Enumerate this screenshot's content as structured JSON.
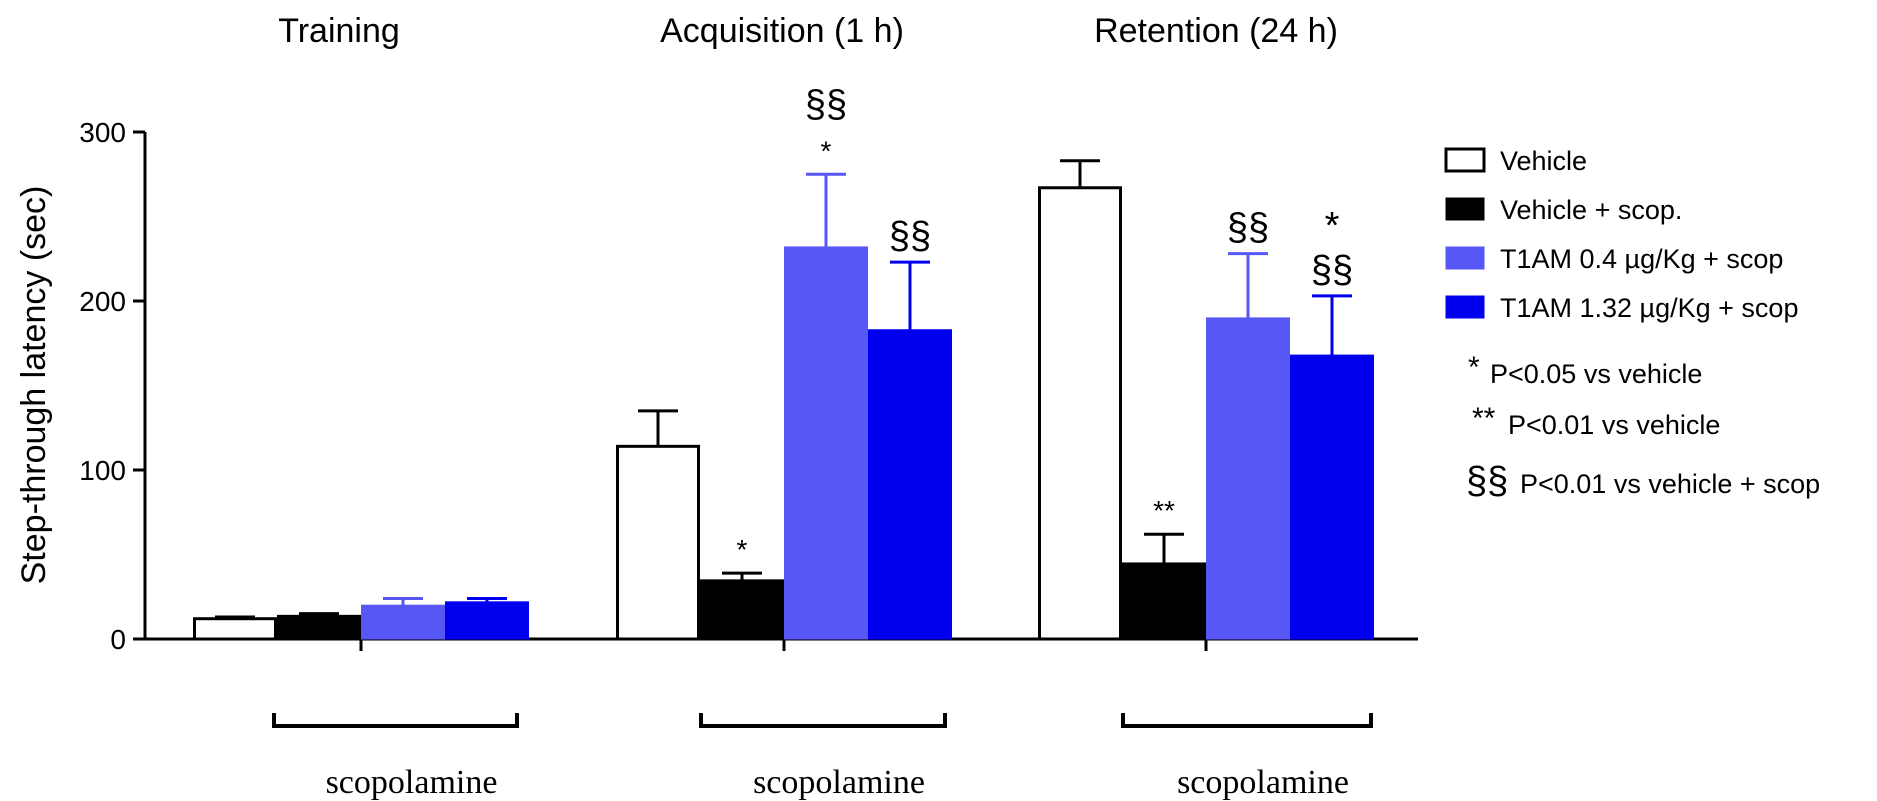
{
  "chart_data": {
    "type": "bar",
    "ylabel": "Step-through latency (sec)",
    "ylim": [
      0,
      300
    ],
    "yticks": [
      0,
      100,
      200,
      300
    ],
    "groups": [
      "Training",
      "Acquisition (1 h)",
      "Retention (24 h)"
    ],
    "series": [
      {
        "name": "Vehicle",
        "color": "#ffffff",
        "stroke": "#000000",
        "values": [
          12,
          114,
          267
        ],
        "errors": [
          1,
          21,
          16
        ],
        "annotations": [
          "",
          "",
          ""
        ]
      },
      {
        "name": "Vehicle + scop.",
        "color": "#000000",
        "stroke": "#000000",
        "values": [
          14,
          35,
          45
        ],
        "errors": [
          1,
          4,
          17
        ],
        "annotations": [
          "",
          "*",
          "**"
        ]
      },
      {
        "name": "T1AM 0.4 µg/Kg + scop",
        "color": "#5757f5",
        "stroke": "#5757f5",
        "values": [
          20,
          232,
          190
        ],
        "errors": [
          4,
          43,
          38
        ],
        "annotations": [
          "",
          "*",
          "§§"
        ]
      },
      {
        "name": "T1AM 1.32 µg/Kg + scop",
        "color": "#0000ee",
        "stroke": "#0000ee",
        "values": [
          22,
          183,
          168
        ],
        "errors": [
          2,
          40,
          35
        ],
        "annotations": [
          "",
          "§§",
          "§§"
        ]
      }
    ],
    "extra_annotations": [
      {
        "series": 2,
        "group": 1,
        "text": "§§"
      },
      {
        "series": 3,
        "group": 2,
        "text": "*"
      }
    ],
    "bracket_label": "scopolamine",
    "significance_notes": [
      {
        "symbol": "*",
        "text": "P<0.05 vs vehicle"
      },
      {
        "symbol": "**",
        "text": "P<0.01 vs vehicle"
      },
      {
        "symbol": "§§",
        "text": "P<0.01 vs vehicle + scop"
      }
    ],
    "legend_position": "right",
    "grid": false
  }
}
